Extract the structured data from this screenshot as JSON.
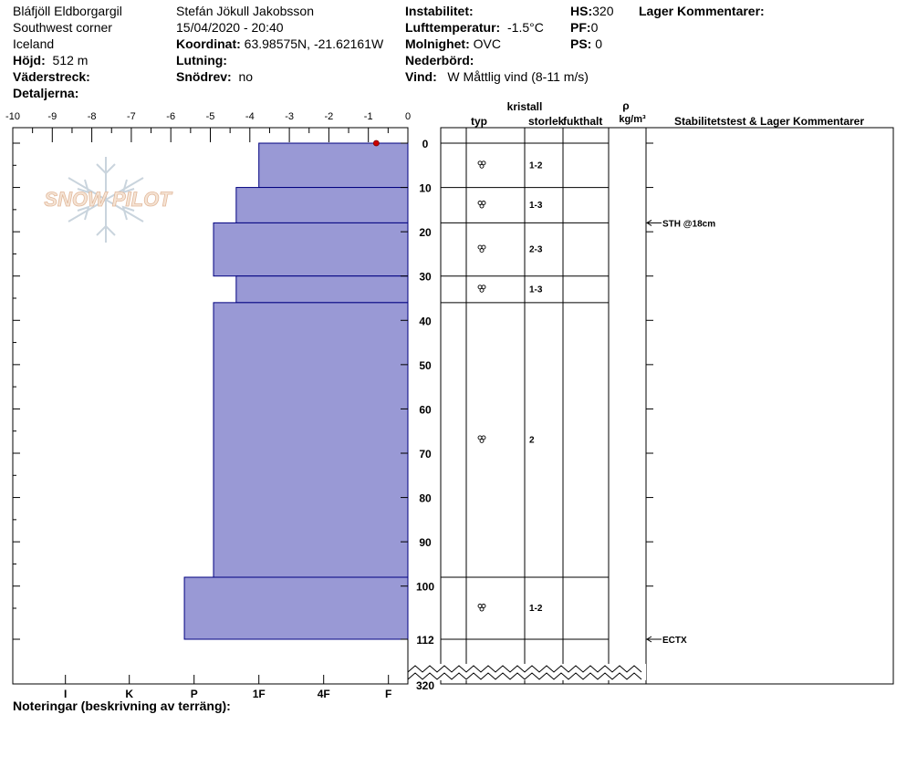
{
  "header": {
    "location": "Bláfjöll Eldborgargil",
    "region": "Southwest corner",
    "country": "Iceland",
    "elevation_label": "Höjd:",
    "elevation": "512 m",
    "aspect_label": "Väderstreck:",
    "details_label": "Detaljerna:",
    "observer": "Stefán Jökull Jakobsson",
    "datetime": "15/04/2020 - 20:40",
    "coord_label": "Koordinat:",
    "coord": "63.98575N, -21.62161W",
    "slope_label": "Lutning:",
    "snowdrift_label": "Snödrev:",
    "snowdrift": "no",
    "instability_label": "Instabilitet:",
    "airtemp_label": "Lufttemperatur:",
    "airtemp": "-1.5°C",
    "sky_label": "Molnighet:",
    "sky": "OVC",
    "precip_label": "Nederbörd:",
    "wind_label": "Vind:",
    "wind": "W Måttlig vind (8-11 m/s)",
    "hs_label": "HS:",
    "hs": "320",
    "pf_label": "PF:",
    "pf": "0",
    "ps_label": "PS:",
    "ps": "0",
    "layer_comments_label": "Lager Kommentarer:"
  },
  "logo": {
    "text": "SNOW PILOT"
  },
  "notes": {
    "label": "Noteringar (beskrivning av terräng):"
  },
  "chart_data": {
    "type": "bar",
    "title": "",
    "temp_axis": {
      "ticks": [
        "-10",
        "-9",
        "-8",
        "-7",
        "-6",
        "-5",
        "-4",
        "-3",
        "-2",
        "-1",
        "0"
      ],
      "range": [
        -10,
        0
      ]
    },
    "hardness_axis": {
      "ticks": [
        "I",
        "K",
        "P",
        "1F",
        "4F",
        "F"
      ],
      "scale": [
        "F",
        "4F",
        "1F",
        "P",
        "K",
        "I"
      ]
    },
    "depth_axis": {
      "ticks": [
        "0",
        "10",
        "20",
        "30",
        "40",
        "50",
        "60",
        "70",
        "80",
        "90",
        "100",
        "112"
      ],
      "bottom_label": "320",
      "range": [
        0,
        112
      ]
    },
    "column_headers": {
      "crystal": "kristall",
      "type": "typ",
      "size": "storlek",
      "moisture": "fukthalt",
      "density_symbol": "ρ",
      "density_unit": "kg/m³",
      "stability": "Stabilitetstest & Lager Kommentarer"
    },
    "layers": [
      {
        "top": 0,
        "bottom": 10,
        "hardness": 2.3,
        "size": "1-2"
      },
      {
        "top": 10,
        "bottom": 18,
        "hardness": 2.65,
        "size": "1-3"
      },
      {
        "top": 18,
        "bottom": 30,
        "hardness": 3.0,
        "size": "2-3"
      },
      {
        "top": 30,
        "bottom": 36,
        "hardness": 2.65,
        "size": "1-3"
      },
      {
        "top": 36,
        "bottom": 98,
        "hardness": 3.0,
        "size": "2"
      },
      {
        "top": 98,
        "bottom": 112,
        "hardness": 3.45,
        "size": "1-2"
      }
    ],
    "surface_temperature": {
      "depth": 0,
      "temp": -0.8
    },
    "tests": [
      {
        "depth": 18,
        "label": "STH @18cm"
      },
      {
        "depth": 112,
        "label": "ECTX"
      }
    ],
    "colors": {
      "fill": "#9999d5",
      "edge": "#000080",
      "temp_point": "#cc0000"
    }
  }
}
